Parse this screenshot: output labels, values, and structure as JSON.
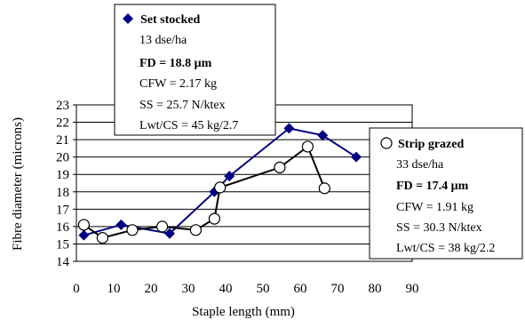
{
  "chart_data": {
    "type": "line",
    "xlabel": "Staple length (mm)",
    "ylabel": "Fibre diameter (microns)",
    "xlim": [
      0,
      90
    ],
    "ylim": [
      14,
      23
    ],
    "x_ticks": [
      "0",
      "10",
      "20",
      "30",
      "40",
      "50",
      "60",
      "70",
      "80",
      "90"
    ],
    "y_ticks": [
      "14",
      "15",
      "16",
      "17",
      "18",
      "19",
      "20",
      "21",
      "22",
      "23"
    ],
    "grid": "horizontal",
    "series": [
      {
        "name": "Set stocked",
        "marker": "diamond",
        "color": "#000080",
        "points": [
          [
            2,
            15.5
          ],
          [
            12,
            16.1
          ],
          [
            25,
            15.6
          ],
          [
            37,
            18
          ],
          [
            41,
            18.9
          ],
          [
            57,
            21.65
          ],
          [
            66,
            21.25
          ],
          [
            75,
            20
          ]
        ],
        "legend": {
          "title": "Set stocked",
          "lines": [
            "13 dse/ha",
            "FD = 18.8 μm",
            "CFW = 2.17 kg",
            "SS = 25.7 N/ktex",
            "Lwt/CS = 45 kg/2.7"
          ]
        }
      },
      {
        "name": "Strip grazed",
        "marker": "open-circle",
        "color": "#000000",
        "points": [
          [
            2,
            16.1
          ],
          [
            7,
            15.35
          ],
          [
            15,
            15.8
          ],
          [
            23,
            16
          ],
          [
            32,
            15.8
          ],
          [
            37,
            16.45
          ],
          [
            38.5,
            18.25
          ],
          [
            54.5,
            19.4
          ],
          [
            62,
            20.6
          ],
          [
            66.5,
            18.2
          ]
        ],
        "legend": {
          "title": "Strip grazed",
          "lines": [
            "33 dse/ha",
            "FD = 17.4 μm",
            "CFW = 1.91 kg",
            "SS = 30.3 N/ktex",
            "Lwt/CS = 38 kg/2.2"
          ]
        }
      }
    ]
  }
}
